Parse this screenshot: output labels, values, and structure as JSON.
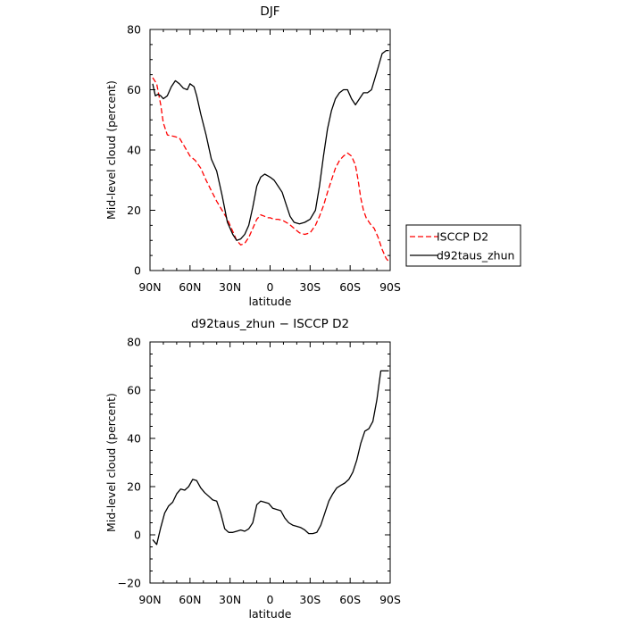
{
  "chart_data": [
    {
      "type": "line",
      "title": "DJF",
      "xlabel": "latitude",
      "ylabel": "Mid-level cloud (percent)",
      "xlim": [
        90,
        -90
      ],
      "ylim": [
        0,
        80
      ],
      "xticks": [
        90,
        60,
        30,
        0,
        -30,
        -60,
        -90
      ],
      "xtick_labels": [
        "90N",
        "60N",
        "30N",
        "0",
        "30S",
        "60S",
        "90S"
      ],
      "yticks": [
        0,
        20,
        40,
        60,
        80
      ],
      "ytick_labels": [
        "0",
        "20",
        "40",
        "60",
        "80"
      ],
      "grid": false,
      "legend": "right",
      "series": [
        {
          "name": "ISCCP D2",
          "color": "#ff0000",
          "dash": "dashed",
          "x": [
            88,
            85,
            82,
            80,
            77,
            72,
            68,
            64,
            60,
            56,
            52,
            48,
            44,
            40,
            36,
            32,
            28,
            25,
            22,
            19,
            16,
            13,
            10,
            7,
            4,
            2,
            0,
            -3,
            -6,
            -10,
            -14,
            -18,
            -22,
            -26,
            -30,
            -34,
            -37,
            -40,
            -43,
            -46,
            -49,
            -52,
            -55,
            -58,
            -61,
            -64,
            -66,
            -68,
            -70,
            -72,
            -75,
            -78,
            -81,
            -84,
            -87,
            -89
          ],
          "y": [
            64,
            62,
            55,
            49,
            45,
            44.5,
            44,
            41,
            38,
            36.5,
            34,
            30,
            26.5,
            23,
            20,
            17,
            13,
            10,
            8.5,
            9,
            11,
            14,
            17,
            18.5,
            18,
            17.5,
            17.5,
            17,
            17,
            16.5,
            15.5,
            14,
            12.5,
            12,
            12.5,
            15,
            18,
            21.5,
            26,
            30,
            34,
            36.5,
            38,
            39,
            38,
            35,
            30,
            24,
            20,
            17.5,
            15.5,
            14,
            11,
            7,
            4,
            3
          ]
        },
        {
          "name": "d92taus_zhun",
          "color": "#000000",
          "dash": "solid",
          "x": [
            88,
            86,
            84,
            82,
            80,
            77,
            74,
            71,
            68,
            65,
            62,
            60,
            57,
            55,
            52,
            48,
            44,
            40,
            36,
            32,
            28,
            25,
            22,
            19,
            16,
            13,
            10,
            7,
            4,
            2,
            0,
            -3,
            -6,
            -9,
            -12,
            -15,
            -18,
            -22,
            -26,
            -30,
            -34,
            -37,
            -40,
            -43,
            -46,
            -49,
            -52,
            -55,
            -58,
            -61,
            -64,
            -67,
            -70,
            -73,
            -76,
            -80,
            -84,
            -87,
            -89
          ],
          "y": [
            62,
            58,
            58.5,
            58,
            57,
            58,
            61,
            63,
            62,
            60.5,
            60,
            62,
            61,
            58,
            52,
            45,
            37,
            33,
            25,
            16,
            12,
            10,
            10.5,
            12,
            15,
            21,
            28,
            31,
            32,
            31.5,
            31,
            30,
            28,
            26,
            22,
            18,
            16,
            15.5,
            16,
            17,
            20,
            28,
            38,
            47,
            53,
            57,
            59,
            60,
            60,
            57,
            55,
            57,
            59,
            59,
            60,
            66,
            72,
            73,
            73
          ]
        }
      ]
    },
    {
      "type": "line",
      "title": "d92taus_zhun − ISCCP D2",
      "xlabel": "latitude",
      "ylabel": "Mid-level cloud (percent)",
      "xlim": [
        90,
        -90
      ],
      "ylim": [
        -20,
        80
      ],
      "xticks": [
        90,
        60,
        30,
        0,
        -30,
        -60,
        -90
      ],
      "xtick_labels": [
        "90N",
        "60N",
        "30N",
        "0",
        "30S",
        "60S",
        "90S"
      ],
      "yticks": [
        -20,
        0,
        20,
        40,
        60,
        80
      ],
      "ytick_labels": [
        "−20",
        "0",
        "20",
        "40",
        "60",
        "80"
      ],
      "grid": false,
      "series": [
        {
          "name": "",
          "color": "#000000",
          "dash": "solid",
          "x": [
            88,
            85,
            82,
            79,
            76,
            73,
            70,
            67,
            64,
            61,
            58,
            55,
            52,
            49,
            46,
            43,
            40,
            37,
            34,
            31,
            28,
            25,
            22,
            19,
            16,
            13,
            10,
            7,
            4,
            1,
            -2,
            -5,
            -8,
            -11,
            -14,
            -17,
            -20,
            -23,
            -26,
            -29,
            -32,
            -35,
            -38,
            -41,
            -44,
            -47,
            -50,
            -53,
            -56,
            -59,
            -62,
            -65,
            -68,
            -71,
            -74,
            -77,
            -80,
            -83,
            -86,
            -89
          ],
          "y": [
            -2,
            -4,
            3,
            9,
            12,
            13.5,
            17,
            19,
            18.5,
            20,
            23,
            22.5,
            19.5,
            17.5,
            16,
            14.5,
            14,
            9,
            2.5,
            1,
            1,
            1.5,
            2,
            1.5,
            2.5,
            5,
            12.5,
            14,
            13.5,
            13,
            11,
            10.5,
            10,
            7,
            5,
            4,
            3.5,
            3,
            2,
            0.5,
            0.5,
            1,
            4,
            9,
            14,
            17,
            19.5,
            20.5,
            21.5,
            23,
            26,
            31,
            38,
            43,
            44,
            47,
            56,
            68,
            68,
            68
          ]
        }
      ]
    }
  ]
}
